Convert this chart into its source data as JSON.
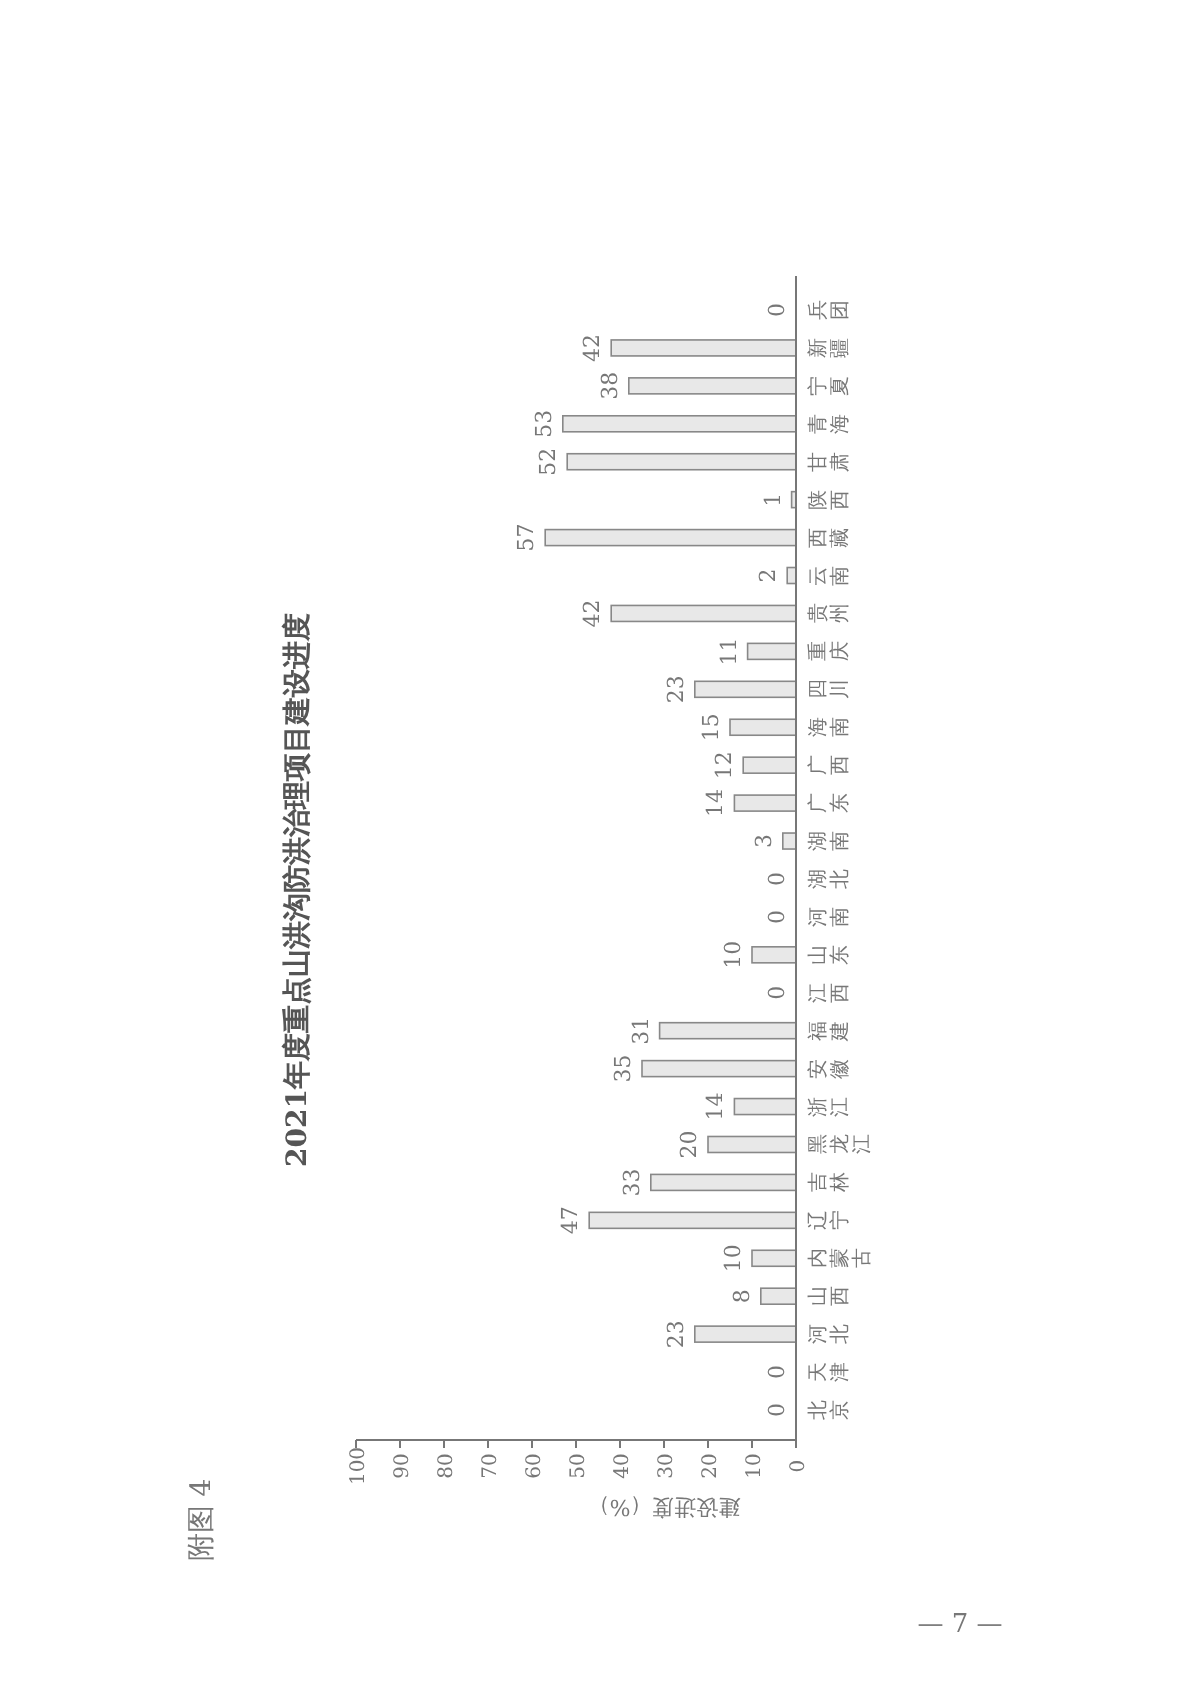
{
  "chart_data": {
    "type": "bar",
    "orientation": "horizontal",
    "title": "2021年度重点山洪沟防洪治理项目建设进度",
    "xlabel": "建设进度（%）",
    "categories": [
      "兵团",
      "新疆",
      "宁夏",
      "青海",
      "甘肃",
      "陕西",
      "西藏",
      "云南",
      "贵州",
      "重庆",
      "四川",
      "海南",
      "广西",
      "广东",
      "湖南",
      "湖北",
      "河南",
      "山东",
      "江西",
      "福建",
      "安徽",
      "浙江",
      "黑龙江",
      "吉林",
      "辽宁",
      "内蒙古",
      "山西",
      "河北",
      "天津",
      "北京"
    ],
    "values": [
      0,
      42,
      38,
      53,
      52,
      1,
      57,
      2,
      42,
      11,
      23,
      15,
      12,
      14,
      3,
      0,
      0,
      10,
      0,
      31,
      35,
      14,
      20,
      33,
      47,
      10,
      8,
      23,
      0,
      0
    ],
    "color": "#e8e8e8",
    "xlim": [
      100,
      0
    ],
    "xticks": [
      0,
      10,
      20,
      30,
      40,
      50,
      60,
      70,
      80,
      90,
      100
    ],
    "data_labels": true,
    "annotations": [
      "附图 4",
      "— 7 —"
    ]
  }
}
